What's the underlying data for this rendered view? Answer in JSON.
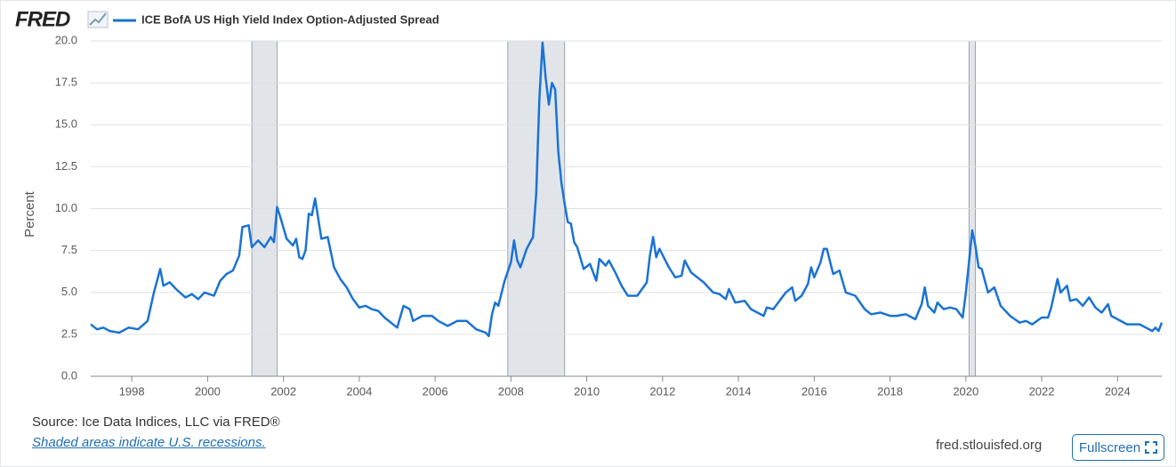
{
  "logo": "FRED",
  "chart_data": {
    "type": "line",
    "ylabel": "Percent",
    "series": [
      {
        "name": "ICE BofA US High Yield Index Option-Adjusted Spread",
        "color": "#1a73d4",
        "values": [
          3.1,
          2.8,
          2.9,
          2.7,
          2.6,
          2.9,
          2.8,
          3.3,
          5.0,
          6.4,
          5.4,
          5.6,
          5.2,
          4.7,
          4.9,
          4.6,
          5.0,
          4.8,
          5.7,
          6.1,
          6.3,
          7.2,
          8.9,
          9.0,
          7.7,
          8.1,
          7.7,
          8.3,
          8.0,
          10.1,
          9.5,
          8.2,
          7.8,
          8.2,
          7.1,
          7.0,
          7.5,
          9.7,
          9.6,
          10.6,
          8.2,
          8.3,
          6.5,
          5.8,
          5.3,
          4.6,
          4.1,
          4.2,
          4.0,
          3.9,
          3.5,
          3.2,
          2.9,
          4.2,
          4.0,
          3.3,
          3.6,
          3.6,
          3.3,
          3.0,
          3.3,
          3.3,
          2.8,
          2.6,
          2.4,
          3.7,
          4.4,
          4.2,
          5.7,
          6.8,
          8.1,
          6.9,
          6.5,
          7.6,
          8.3,
          10.9,
          16.5,
          19.9,
          17.8,
          16.2,
          17.5,
          17.1,
          13.4,
          11.5,
          10.3,
          9.2,
          9.1,
          8.0,
          7.7,
          6.4,
          6.7,
          5.7,
          7.0,
          6.6,
          6.9,
          6.2,
          5.4,
          4.8,
          4.8,
          5.6,
          7.2,
          8.3,
          7.1,
          7.6,
          6.5,
          5.9,
          6.0,
          6.9,
          6.2,
          5.9,
          5.6,
          5.0,
          4.9,
          4.6,
          5.2,
          4.4,
          4.5,
          4.0,
          3.8,
          3.6,
          4.1,
          4.0,
          4.5,
          5.0,
          5.3,
          4.5,
          4.8,
          5.5,
          6.5,
          5.9,
          6.8,
          7.6,
          7.6,
          6.1,
          6.3,
          5.0,
          4.8,
          4.0,
          3.7,
          3.8,
          3.6,
          3.6,
          3.7,
          3.4,
          4.3,
          5.3,
          4.2,
          3.8,
          4.4,
          4.0,
          4.1,
          4.0,
          3.5,
          5.0,
          8.7,
          7.8,
          6.5,
          6.4,
          5.0,
          5.3,
          4.2,
          3.6,
          3.2,
          3.3,
          3.1,
          3.5,
          3.5,
          4.1,
          5.8,
          5.0,
          5.4,
          4.5,
          4.6,
          4.2,
          4.7,
          4.1,
          3.8,
          4.3,
          3.6,
          3.4,
          3.1,
          3.1,
          2.9,
          2.7,
          2.9,
          2.7,
          3.2
        ]
      }
    ],
    "x": [
      "1996-12",
      "1997-02",
      "1997-04",
      "1997-06",
      "1997-09",
      "1997-12",
      "1998-03",
      "1998-06",
      "1998-08",
      "1998-10",
      "1998-11",
      "1999-01",
      "1999-03",
      "1999-06",
      "1999-08",
      "1999-10",
      "1999-12",
      "2000-03",
      "2000-05",
      "2000-07",
      "2000-09",
      "2000-11",
      "2000-12",
      "2001-02",
      "2001-03",
      "2001-05",
      "2001-07",
      "2001-09",
      "2001-10",
      "2001-11",
      "2001-12",
      "2002-02",
      "2002-04",
      "2002-05",
      "2002-06",
      "2002-07",
      "2002-08",
      "2002-09",
      "2002-10",
      "2002-11",
      "2003-01",
      "2003-03",
      "2003-05",
      "2003-07",
      "2003-09",
      "2003-11",
      "2004-01",
      "2004-03",
      "2004-05",
      "2004-07",
      "2004-09",
      "2004-11",
      "2005-01",
      "2005-03",
      "2005-05",
      "2005-06",
      "2005-09",
      "2005-12",
      "2006-02",
      "2006-05",
      "2006-08",
      "2006-11",
      "2007-02",
      "2007-05",
      "2007-06",
      "2007-07",
      "2007-08",
      "2007-09",
      "2007-11",
      "2008-01",
      "2008-02",
      "2008-03",
      "2008-04",
      "2008-06",
      "2008-08",
      "2008-09",
      "2008-10",
      "2008-11",
      "2008-12",
      "2009-01",
      "2009-02",
      "2009-03",
      "2009-04",
      "2009-05",
      "2009-06",
      "2009-07",
      "2009-08",
      "2009-09",
      "2009-10",
      "2009-12",
      "2010-02",
      "2010-04",
      "2010-05",
      "2010-07",
      "2010-08",
      "2010-10",
      "2010-12",
      "2011-02",
      "2011-05",
      "2011-08",
      "2011-09",
      "2011-10",
      "2011-11",
      "2011-12",
      "2012-03",
      "2012-05",
      "2012-07",
      "2012-08",
      "2012-10",
      "2012-12",
      "2013-02",
      "2013-05",
      "2013-07",
      "2013-09",
      "2013-10",
      "2013-12",
      "2014-03",
      "2014-05",
      "2014-07",
      "2014-09",
      "2014-10",
      "2014-12",
      "2015-02",
      "2015-04",
      "2015-06",
      "2015-07",
      "2015-09",
      "2015-11",
      "2015-12",
      "2016-01",
      "2016-03",
      "2016-04",
      "2016-05",
      "2016-07",
      "2016-09",
      "2016-11",
      "2017-02",
      "2017-05",
      "2017-07",
      "2017-10",
      "2018-01",
      "2018-03",
      "2018-06",
      "2018-09",
      "2018-11",
      "2018-12",
      "2019-01",
      "2019-03",
      "2019-04",
      "2019-06",
      "2019-08",
      "2019-10",
      "2019-12",
      "2020-01",
      "2020-03",
      "2020-04",
      "2020-05",
      "2020-06",
      "2020-08",
      "2020-10",
      "2020-12",
      "2021-03",
      "2021-06",
      "2021-08",
      "2021-10",
      "2022-01",
      "2022-03",
      "2022-04",
      "2022-06",
      "2022-07",
      "2022-09",
      "2022-10",
      "2022-12",
      "2023-02",
      "2023-04",
      "2023-06",
      "2023-08",
      "2023-10",
      "2023-11",
      "2024-01",
      "2024-04",
      "2024-08",
      "2024-10",
      "2024-12",
      "2025-01",
      "2025-02",
      "2025-03"
    ],
    "xlim": [
      "1996-12",
      "2025-03"
    ],
    "xticks": [
      1998,
      2000,
      2002,
      2004,
      2006,
      2008,
      2010,
      2012,
      2014,
      2016,
      2018,
      2020,
      2022,
      2024
    ],
    "ylim": [
      0,
      20
    ],
    "yticks": [
      {
        "value": 0,
        "label": "0.0"
      },
      2.5,
      {
        "value": 5,
        "label": "5.0"
      },
      7.5,
      {
        "value": 10,
        "label": "10.0"
      },
      12.5,
      {
        "value": 15,
        "label": "15.0"
      },
      17.5,
      {
        "value": 20,
        "label": "20.0"
      }
    ],
    "grid": true,
    "recessions": [
      {
        "start": "2001-03",
        "end": "2001-11"
      },
      {
        "start": "2007-12",
        "end": "2009-06"
      },
      {
        "start": "2020-02",
        "end": "2020-04"
      }
    ],
    "recession_color": "#e1e5ea"
  },
  "footer": {
    "source": "Source: Ice Data Indices, LLC via FRED®",
    "note": "Shaded areas indicate U.S. recessions.",
    "site": "fred.stlouisfed.org",
    "button": "Fullscreen"
  }
}
